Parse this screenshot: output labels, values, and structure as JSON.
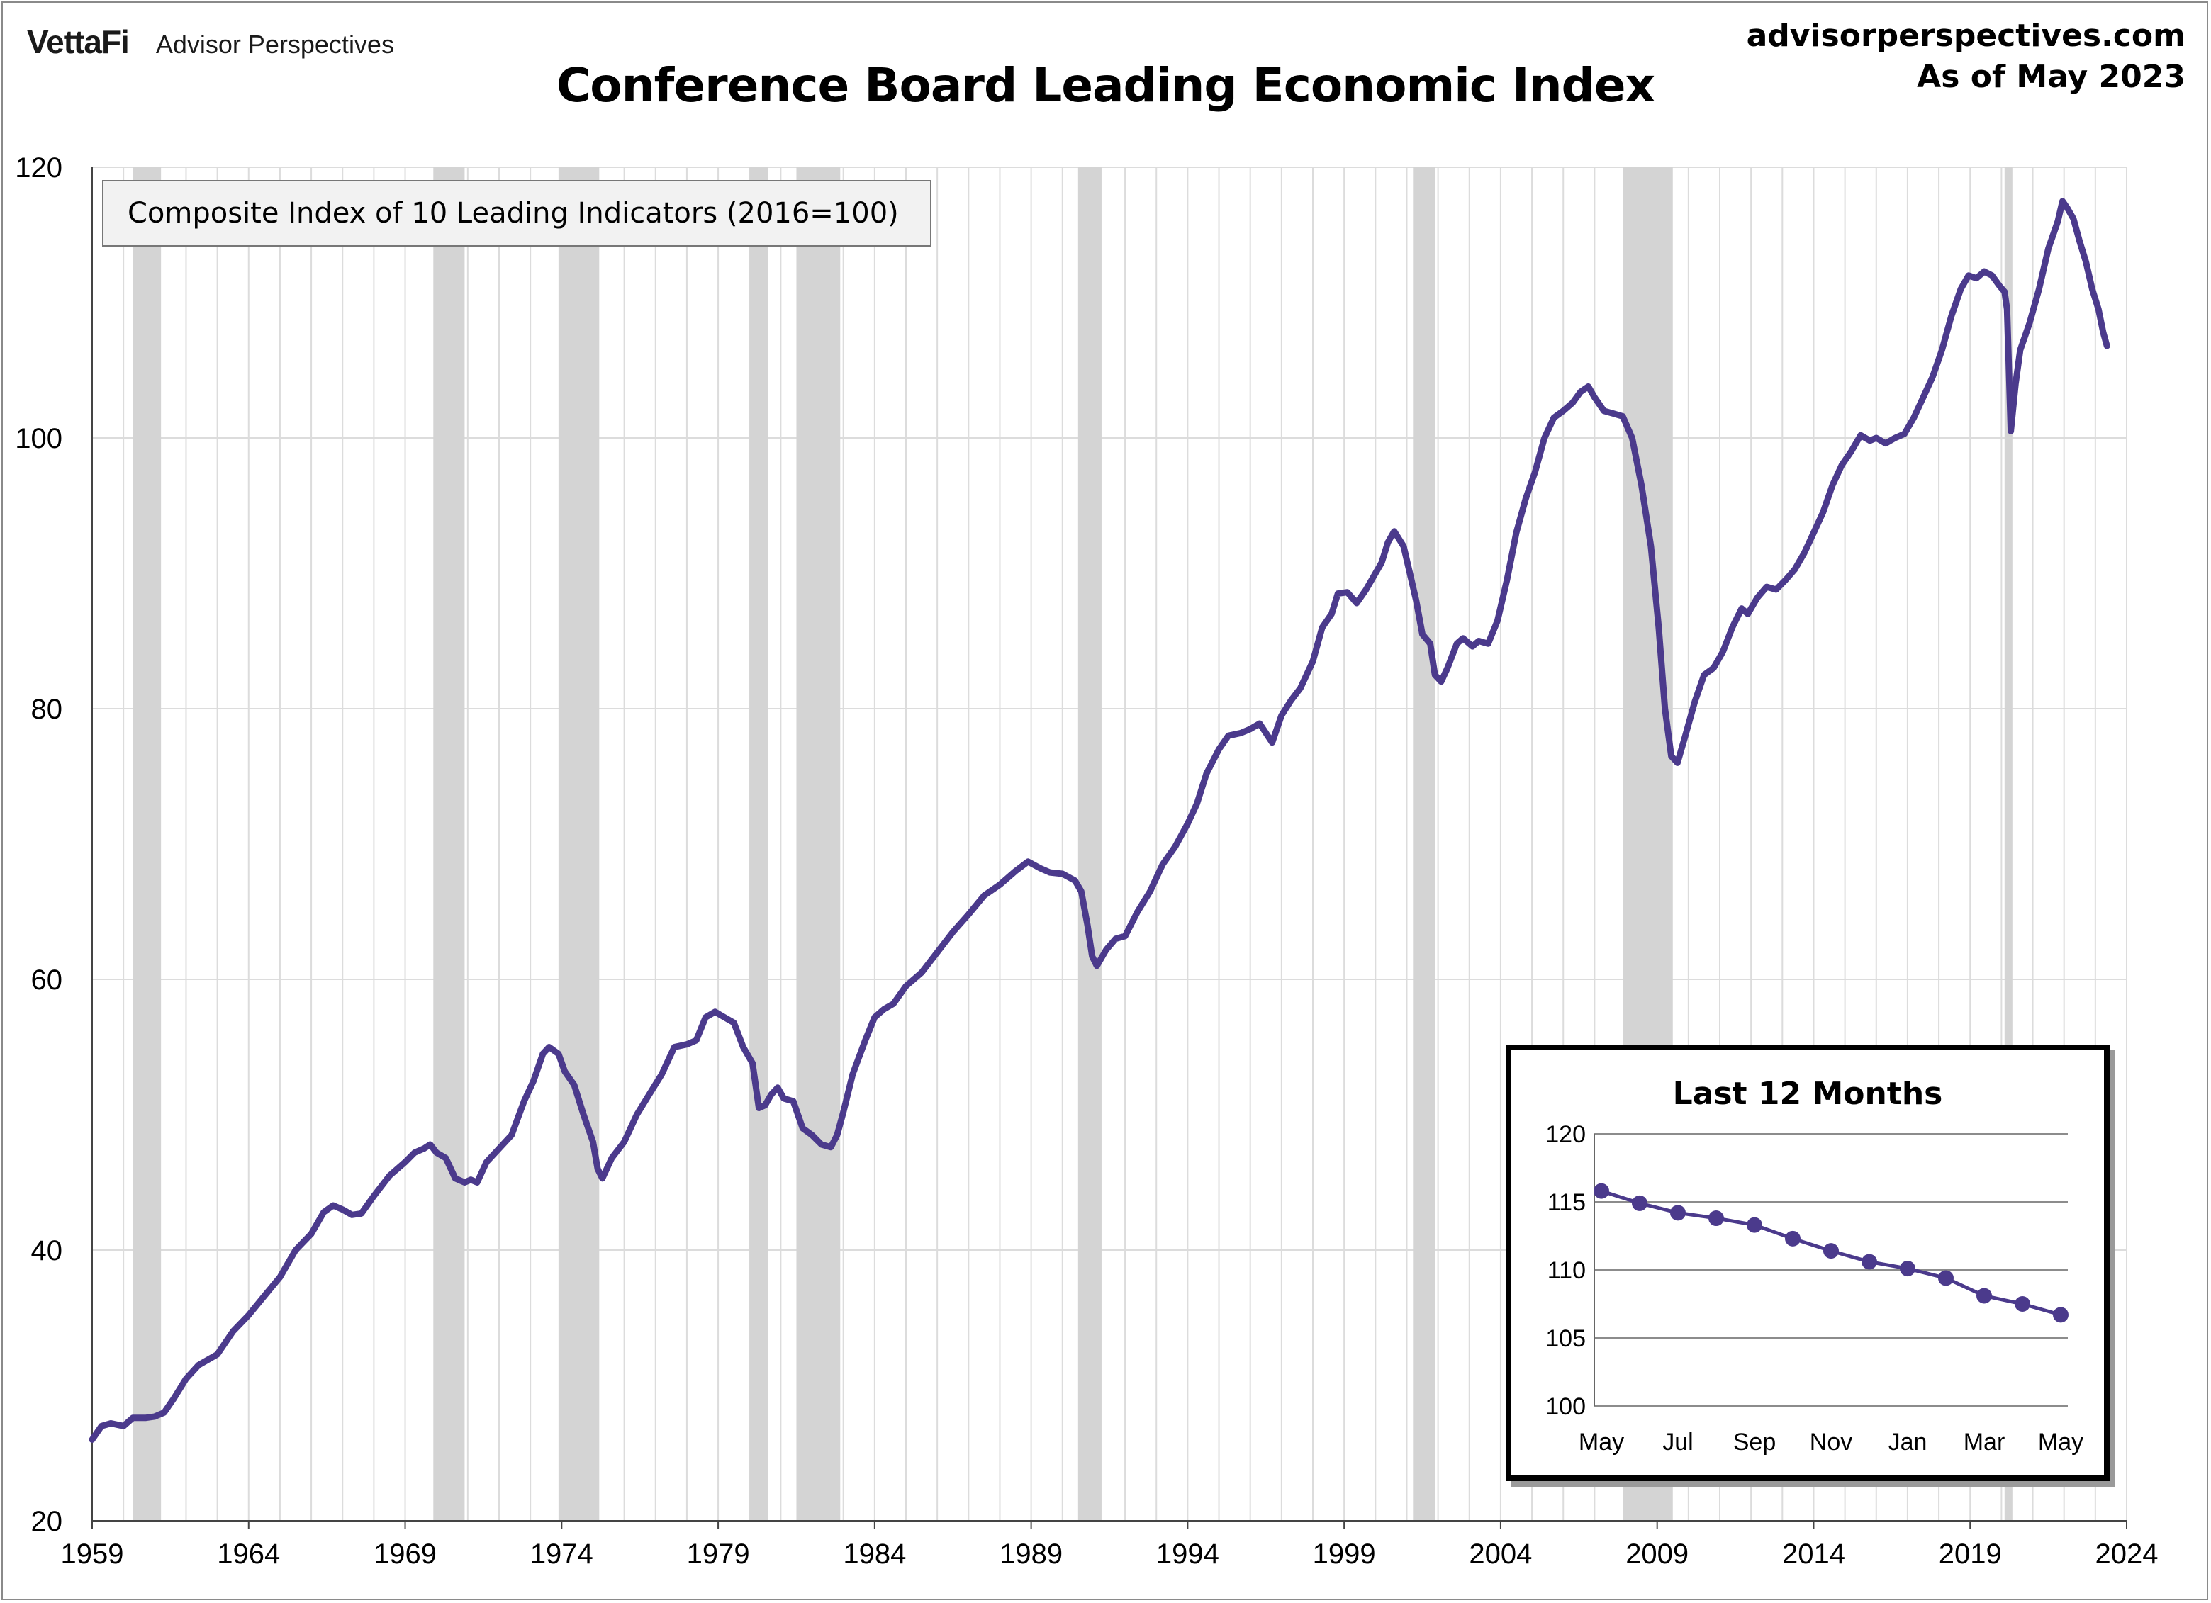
{
  "header": {
    "brand_logo": "VettaFi",
    "brand_name": "Advisor Perspectives",
    "site": "advisorperspectives.com",
    "as_of": "As of May 2023"
  },
  "colors": {
    "series": "#4b3a8c",
    "recession_band": "#d4d4d4",
    "grid": "#dcdcdc",
    "inset_grid": "#8c8c8c"
  },
  "chart_data": [
    {
      "type": "line",
      "title": "Conference Board Leading Economic Index",
      "legend": "Composite Index of 10 Leading Indicators (2016=100)",
      "legend_position": "top-left",
      "xlim": [
        1959,
        2024
      ],
      "ylim": [
        20,
        120
      ],
      "x_ticks": [
        1959,
        1964,
        1969,
        1974,
        1979,
        1984,
        1989,
        1994,
        1999,
        2004,
        2009,
        2014,
        2019,
        2024
      ],
      "y_ticks": [
        20,
        40,
        60,
        80,
        100,
        120
      ],
      "grid": true,
      "recessions": [
        [
          1960.3,
          1961.2
        ],
        [
          1969.9,
          1970.9
        ],
        [
          1973.9,
          1975.2
        ],
        [
          1980.0,
          1980.6
        ],
        [
          1981.5,
          1982.9
        ],
        [
          1990.5,
          1991.25
        ],
        [
          2001.2,
          2001.9
        ],
        [
          2007.9,
          2009.5
        ],
        [
          2020.1,
          2020.35
        ]
      ],
      "series": [
        {
          "name": "Composite Index of 10 Leading Indicators (2016=100)",
          "points": [
            [
              1959.0,
              26.0
            ],
            [
              1959.3,
              27.0
            ],
            [
              1959.6,
              27.2
            ],
            [
              1960.0,
              27.0
            ],
            [
              1960.3,
              27.6
            ],
            [
              1960.7,
              27.6
            ],
            [
              1961.0,
              27.7
            ],
            [
              1961.3,
              28.0
            ],
            [
              1961.6,
              29.0
            ],
            [
              1962.0,
              30.5
            ],
            [
              1962.4,
              31.5
            ],
            [
              1962.7,
              31.9
            ],
            [
              1963.0,
              32.3
            ],
            [
              1963.5,
              34.0
            ],
            [
              1964.0,
              35.2
            ],
            [
              1964.5,
              36.6
            ],
            [
              1965.0,
              38.0
            ],
            [
              1965.5,
              40.0
            ],
            [
              1966.0,
              41.2
            ],
            [
              1966.4,
              42.8
            ],
            [
              1966.7,
              43.3
            ],
            [
              1967.0,
              43.0
            ],
            [
              1967.3,
              42.6
            ],
            [
              1967.6,
              42.7
            ],
            [
              1968.0,
              44.0
            ],
            [
              1968.5,
              45.5
            ],
            [
              1969.0,
              46.5
            ],
            [
              1969.3,
              47.2
            ],
            [
              1969.6,
              47.5
            ],
            [
              1969.8,
              47.8
            ],
            [
              1970.0,
              47.2
            ],
            [
              1970.3,
              46.8
            ],
            [
              1970.6,
              45.3
            ],
            [
              1970.9,
              45.0
            ],
            [
              1971.1,
              45.2
            ],
            [
              1971.3,
              45.0
            ],
            [
              1971.6,
              46.5
            ],
            [
              1972.0,
              47.5
            ],
            [
              1972.4,
              48.5
            ],
            [
              1972.8,
              51.0
            ],
            [
              1973.1,
              52.5
            ],
            [
              1973.4,
              54.5
            ],
            [
              1973.6,
              55.0
            ],
            [
              1973.9,
              54.5
            ],
            [
              1974.1,
              53.2
            ],
            [
              1974.4,
              52.2
            ],
            [
              1974.7,
              50.0
            ],
            [
              1975.0,
              48.0
            ],
            [
              1975.15,
              46.0
            ],
            [
              1975.3,
              45.3
            ],
            [
              1975.6,
              46.8
            ],
            [
              1976.0,
              48.0
            ],
            [
              1976.4,
              50.0
            ],
            [
              1976.8,
              51.5
            ],
            [
              1977.2,
              53.0
            ],
            [
              1977.6,
              55.0
            ],
            [
              1978.0,
              55.2
            ],
            [
              1978.3,
              55.5
            ],
            [
              1978.6,
              57.2
            ],
            [
              1978.9,
              57.6
            ],
            [
              1979.2,
              57.2
            ],
            [
              1979.5,
              56.8
            ],
            [
              1979.8,
              55.0
            ],
            [
              1980.1,
              53.8
            ],
            [
              1980.3,
              50.5
            ],
            [
              1980.5,
              50.7
            ],
            [
              1980.7,
              51.5
            ],
            [
              1980.9,
              52.0
            ],
            [
              1981.1,
              51.2
            ],
            [
              1981.4,
              51.0
            ],
            [
              1981.7,
              49.0
            ],
            [
              1982.0,
              48.5
            ],
            [
              1982.3,
              47.8
            ],
            [
              1982.6,
              47.6
            ],
            [
              1982.8,
              48.5
            ],
            [
              1983.0,
              50.2
            ],
            [
              1983.3,
              53.0
            ],
            [
              1983.7,
              55.5
            ],
            [
              1984.0,
              57.2
            ],
            [
              1984.3,
              57.8
            ],
            [
              1984.6,
              58.2
            ],
            [
              1985.0,
              59.5
            ],
            [
              1985.5,
              60.5
            ],
            [
              1986.0,
              62.0
            ],
            [
              1986.5,
              63.5
            ],
            [
              1987.0,
              64.8
            ],
            [
              1987.5,
              66.2
            ],
            [
              1988.0,
              67.0
            ],
            [
              1988.5,
              68.0
            ],
            [
              1988.9,
              68.7
            ],
            [
              1989.3,
              68.2
            ],
            [
              1989.6,
              67.9
            ],
            [
              1990.0,
              67.8
            ],
            [
              1990.4,
              67.3
            ],
            [
              1990.6,
              66.5
            ],
            [
              1990.8,
              64.0
            ],
            [
              1990.95,
              61.7
            ],
            [
              1991.1,
              61.0
            ],
            [
              1991.4,
              62.2
            ],
            [
              1991.7,
              63.0
            ],
            [
              1992.0,
              63.2
            ],
            [
              1992.4,
              65.0
            ],
            [
              1992.8,
              66.5
            ],
            [
              1993.2,
              68.5
            ],
            [
              1993.6,
              69.8
            ],
            [
              1994.0,
              71.5
            ],
            [
              1994.3,
              73.0
            ],
            [
              1994.6,
              75.2
            ],
            [
              1995.0,
              77.0
            ],
            [
              1995.3,
              78.0
            ],
            [
              1995.7,
              78.2
            ],
            [
              1996.0,
              78.5
            ],
            [
              1996.3,
              78.9
            ],
            [
              1996.5,
              78.2
            ],
            [
              1996.7,
              77.5
            ],
            [
              1997.0,
              79.5
            ],
            [
              1997.3,
              80.6
            ],
            [
              1997.6,
              81.5
            ],
            [
              1998.0,
              83.5
            ],
            [
              1998.3,
              86.0
            ],
            [
              1998.6,
              87.0
            ],
            [
              1998.8,
              88.5
            ],
            [
              1999.1,
              88.6
            ],
            [
              1999.4,
              87.8
            ],
            [
              1999.7,
              88.8
            ],
            [
              2000.0,
              90.0
            ],
            [
              2000.2,
              90.8
            ],
            [
              2000.4,
              92.3
            ],
            [
              2000.6,
              93.1
            ],
            [
              2000.9,
              92.0
            ],
            [
              2001.1,
              90.0
            ],
            [
              2001.3,
              88.0
            ],
            [
              2001.5,
              85.5
            ],
            [
              2001.75,
              84.8
            ],
            [
              2001.9,
              82.5
            ],
            [
              2002.1,
              82.0
            ],
            [
              2002.3,
              83.0
            ],
            [
              2002.6,
              84.8
            ],
            [
              2002.8,
              85.2
            ],
            [
              2003.1,
              84.6
            ],
            [
              2003.3,
              85.0
            ],
            [
              2003.6,
              84.8
            ],
            [
              2003.9,
              86.5
            ],
            [
              2004.2,
              89.5
            ],
            [
              2004.5,
              93.0
            ],
            [
              2004.8,
              95.5
            ],
            [
              2005.1,
              97.5
            ],
            [
              2005.4,
              100.0
            ],
            [
              2005.7,
              101.5
            ],
            [
              2006.0,
              102.0
            ],
            [
              2006.3,
              102.6
            ],
            [
              2006.55,
              103.4
            ],
            [
              2006.8,
              103.8
            ],
            [
              2007.0,
              103.0
            ],
            [
              2007.3,
              102.0
            ],
            [
              2007.6,
              101.8
            ],
            [
              2007.9,
              101.6
            ],
            [
              2008.2,
              100.0
            ],
            [
              2008.5,
              96.5
            ],
            [
              2008.8,
              92.0
            ],
            [
              2009.05,
              86.0
            ],
            [
              2009.25,
              80.0
            ],
            [
              2009.45,
              76.5
            ],
            [
              2009.65,
              76.0
            ],
            [
              2009.9,
              78.0
            ],
            [
              2010.2,
              80.5
            ],
            [
              2010.5,
              82.5
            ],
            [
              2010.8,
              83.0
            ],
            [
              2011.1,
              84.2
            ],
            [
              2011.4,
              86.0
            ],
            [
              2011.7,
              87.4
            ],
            [
              2011.9,
              87.0
            ],
            [
              2012.2,
              88.2
            ],
            [
              2012.5,
              89.0
            ],
            [
              2012.8,
              88.8
            ],
            [
              2013.1,
              89.5
            ],
            [
              2013.4,
              90.3
            ],
            [
              2013.7,
              91.5
            ],
            [
              2014.0,
              93.0
            ],
            [
              2014.3,
              94.5
            ],
            [
              2014.6,
              96.5
            ],
            [
              2014.9,
              98.0
            ],
            [
              2015.2,
              99.0
            ],
            [
              2015.5,
              100.2
            ],
            [
              2015.8,
              99.8
            ],
            [
              2016.0,
              100.0
            ],
            [
              2016.3,
              99.6
            ],
            [
              2016.6,
              100.0
            ],
            [
              2016.9,
              100.3
            ],
            [
              2017.2,
              101.5
            ],
            [
              2017.5,
              103.0
            ],
            [
              2017.8,
              104.5
            ],
            [
              2018.1,
              106.5
            ],
            [
              2018.4,
              109.0
            ],
            [
              2018.7,
              111.0
            ],
            [
              2018.95,
              112.0
            ],
            [
              2019.2,
              111.8
            ],
            [
              2019.45,
              112.3
            ],
            [
              2019.7,
              112.0
            ],
            [
              2019.95,
              111.2
            ],
            [
              2020.1,
              110.8
            ],
            [
              2020.18,
              109.5
            ],
            [
              2020.3,
              100.5
            ],
            [
              2020.45,
              104.0
            ],
            [
              2020.6,
              106.5
            ],
            [
              2020.9,
              108.5
            ],
            [
              2021.2,
              111.0
            ],
            [
              2021.5,
              114.0
            ],
            [
              2021.8,
              116.0
            ],
            [
              2021.95,
              117.5
            ],
            [
              2022.1,
              117.0
            ],
            [
              2022.3,
              116.2
            ],
            [
              2022.5,
              114.5
            ],
            [
              2022.7,
              113.0
            ],
            [
              2022.9,
              111.0
            ],
            [
              2023.1,
              109.5
            ],
            [
              2023.25,
              107.8
            ],
            [
              2023.37,
              106.8
            ]
          ]
        }
      ]
    },
    {
      "type": "line",
      "title": "Last 12 Months",
      "categories": [
        "May",
        "Jun",
        "Jul",
        "Aug",
        "Sep",
        "Oct",
        "Nov",
        "Dec",
        "Jan",
        "Feb",
        "Mar",
        "Apr",
        "May"
      ],
      "x_tick_labels": [
        "May",
        "Jul",
        "Sep",
        "Nov",
        "Jan",
        "Mar",
        "May"
      ],
      "ylim": [
        100,
        120
      ],
      "y_ticks": [
        100,
        105,
        110,
        115,
        120
      ],
      "grid": true,
      "series": [
        {
          "values": [
            115.8,
            114.9,
            114.2,
            113.8,
            113.3,
            112.3,
            111.4,
            110.6,
            110.1,
            109.4,
            108.1,
            107.5,
            106.7
          ]
        }
      ]
    }
  ]
}
